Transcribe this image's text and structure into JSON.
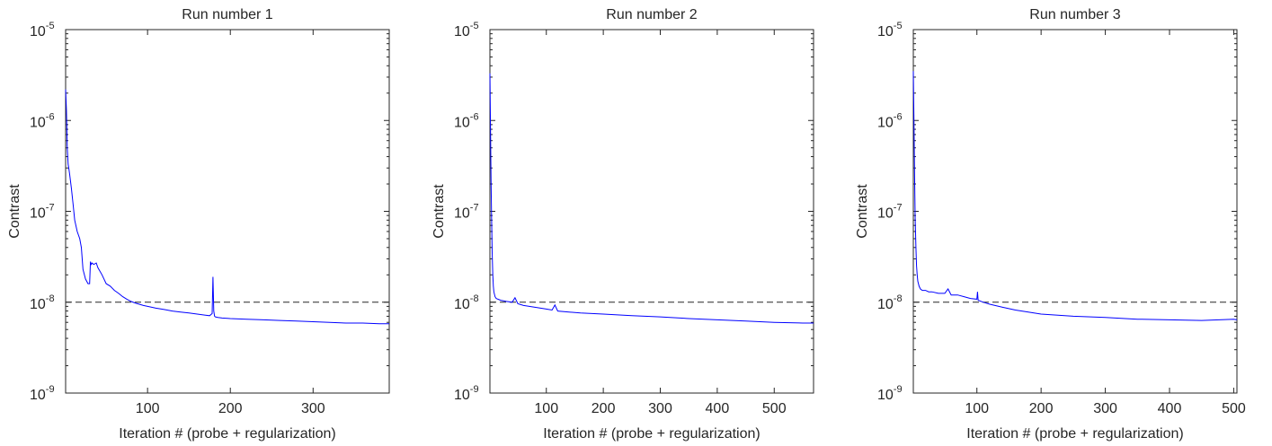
{
  "chart_data": [
    {
      "type": "line",
      "title": "Run number 1",
      "xlabel": "Iteration # (probe + regularization)",
      "ylabel": "Contrast",
      "yscale": "log",
      "xlim": [
        1,
        392
      ],
      "ylim": [
        1e-09,
        1e-05
      ],
      "xticks": [
        100,
        200,
        300
      ],
      "yticks": [
        {
          "base": "10",
          "exp": "-9"
        },
        {
          "base": "10",
          "exp": "-8"
        },
        {
          "base": "10",
          "exp": "-7"
        },
        {
          "base": "10",
          "exp": "-6"
        },
        {
          "base": "10",
          "exp": "-5"
        }
      ],
      "threshold": 1e-08,
      "series": [
        {
          "color": "#0000ff",
          "x": [
            1,
            2,
            3,
            4,
            5,
            6,
            8,
            10,
            12,
            15,
            18,
            20,
            22,
            25,
            28,
            30,
            31,
            32,
            33,
            35,
            38,
            40,
            45,
            50,
            55,
            60,
            65,
            70,
            75,
            80,
            85,
            90,
            95,
            100,
            110,
            120,
            130,
            140,
            150,
            160,
            170,
            175,
            178,
            179,
            180,
            181,
            182,
            185,
            190,
            200,
            220,
            240,
            260,
            280,
            300,
            320,
            340,
            360,
            380,
            392
          ],
          "y": [
            2.2e-06,
            1.3e-06,
            5e-07,
            3.3e-07,
            2.9e-07,
            2.5e-07,
            1.8e-07,
            1.2e-07,
            8e-08,
            6e-08,
            5e-08,
            4e-08,
            2.3e-08,
            1.8e-08,
            1.6e-08,
            1.6e-08,
            2.8e-08,
            2.6e-08,
            2.7e-08,
            2.6e-08,
            2.7e-08,
            2.4e-08,
            2e-08,
            1.6e-08,
            1.5e-08,
            1.35e-08,
            1.25e-08,
            1.15e-08,
            1.08e-08,
            1.02e-08,
            9.8e-09,
            9.5e-09,
            9.2e-09,
            9e-09,
            8.6e-09,
            8.3e-09,
            8e-09,
            7.8e-09,
            7.6e-09,
            7.4e-09,
            7.2e-09,
            7.1e-09,
            7.5e-09,
            1.9e-08,
            8e-09,
            7e-09,
            6.9e-09,
            6.8e-09,
            6.7e-09,
            6.6e-09,
            6.5e-09,
            6.4e-09,
            6.3e-09,
            6.2e-09,
            6.1e-09,
            6e-09,
            5.9e-09,
            5.9e-09,
            5.8e-09,
            5.8e-09
          ]
        }
      ]
    },
    {
      "type": "line",
      "title": "Run number 2",
      "xlabel": "Iteration # (probe + regularization)",
      "ylabel": "Contrast",
      "yscale": "log",
      "xlim": [
        1,
        569
      ],
      "ylim": [
        1e-09,
        1e-05
      ],
      "xticks": [
        100,
        200,
        300,
        400,
        500
      ],
      "yticks": [
        {
          "base": "10",
          "exp": "-9"
        },
        {
          "base": "10",
          "exp": "-8"
        },
        {
          "base": "10",
          "exp": "-7"
        },
        {
          "base": "10",
          "exp": "-6"
        },
        {
          "base": "10",
          "exp": "-5"
        }
      ],
      "threshold": 1e-08,
      "series": [
        {
          "color": "#0000ff",
          "x": [
            1,
            2,
            3,
            4,
            5,
            6,
            7,
            8,
            10,
            12,
            15,
            20,
            30,
            40,
            45,
            50,
            60,
            80,
            100,
            110,
            115,
            120,
            140,
            160,
            180,
            200,
            250,
            300,
            350,
            400,
            450,
            500,
            550,
            569
          ],
          "y": [
            3.3e-06,
            9e-07,
            2e-07,
            8e-08,
            3.5e-08,
            2e-08,
            1.5e-08,
            1.3e-08,
            1.15e-08,
            1.1e-08,
            1.08e-08,
            1.05e-08,
            1.02e-08,
            1e-08,
            1.12e-08,
            9.6e-09,
            9.2e-09,
            8.8e-09,
            8.4e-09,
            8.2e-09,
            9.3e-09,
            8e-09,
            7.8e-09,
            7.6e-09,
            7.5e-09,
            7.4e-09,
            7.1e-09,
            6.9e-09,
            6.6e-09,
            6.4e-09,
            6.2e-09,
            6e-09,
            5.9e-09,
            5.9e-09
          ]
        }
      ]
    },
    {
      "type": "line",
      "title": "Run number 3",
      "xlabel": "Iteration # (probe + regularization)",
      "ylabel": "Contrast",
      "yscale": "log",
      "xlim": [
        1,
        505
      ],
      "ylim": [
        1e-09,
        1e-05
      ],
      "xticks": [
        100,
        200,
        300,
        400,
        500
      ],
      "yticks": [
        {
          "base": "10",
          "exp": "-9"
        },
        {
          "base": "10",
          "exp": "-8"
        },
        {
          "base": "10",
          "exp": "-7"
        },
        {
          "base": "10",
          "exp": "-6"
        },
        {
          "base": "10",
          "exp": "-5"
        }
      ],
      "threshold": 1e-08,
      "series": [
        {
          "color": "#0000ff",
          "x": [
            1,
            2,
            3,
            4,
            5,
            6,
            7,
            8,
            10,
            12,
            15,
            20,
            25,
            30,
            40,
            50,
            55,
            60,
            70,
            80,
            90,
            100,
            101,
            102,
            110,
            120,
            140,
            160,
            180,
            200,
            250,
            300,
            350,
            400,
            450,
            500,
            505
          ],
          "y": [
            3.5e-06,
            1e-06,
            2.5e-07,
            8e-08,
            4e-08,
            2.5e-08,
            2e-08,
            1.7e-08,
            1.5e-08,
            1.4e-08,
            1.35e-08,
            1.35e-08,
            1.3e-08,
            1.3e-08,
            1.25e-08,
            1.25e-08,
            1.4e-08,
            1.2e-08,
            1.2e-08,
            1.15e-08,
            1.1e-08,
            1.08e-08,
            1.3e-08,
            1.05e-08,
            1e-08,
            9.5e-09,
            8.8e-09,
            8.2e-09,
            7.8e-09,
            7.4e-09,
            7e-09,
            6.8e-09,
            6.5e-09,
            6.4e-09,
            6.3e-09,
            6.5e-09,
            6.4e-09
          ]
        }
      ]
    }
  ]
}
